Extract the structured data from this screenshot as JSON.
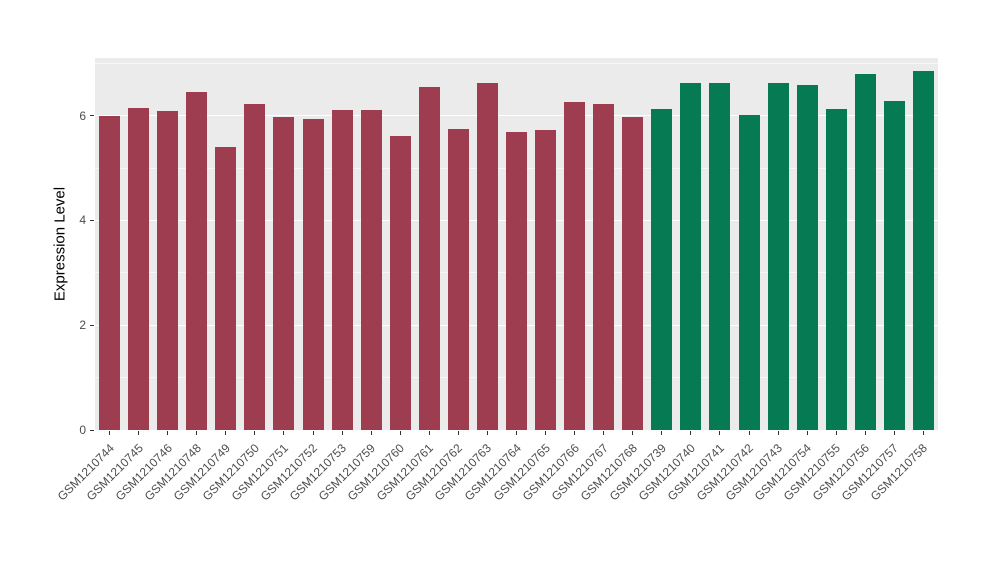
{
  "chart_data": {
    "type": "bar",
    "title": "",
    "xlabel": "",
    "ylabel": "Expression Level",
    "ylim": [
      0,
      7.1
    ],
    "yticks": [
      0,
      2,
      4,
      6
    ],
    "yticks_minor": [
      1,
      3,
      5,
      7
    ],
    "panel_bg": "#EBEBEB",
    "grid_color": "#FFFFFF",
    "legend": "none",
    "categories": [
      "GSM1210744",
      "GSM1210745",
      "GSM1210746",
      "GSM1210748",
      "GSM1210749",
      "GSM1210750",
      "GSM1210751",
      "GSM1210752",
      "GSM1210753",
      "GSM1210759",
      "GSM1210760",
      "GSM1210761",
      "GSM1210762",
      "GSM1210763",
      "GSM1210764",
      "GSM1210765",
      "GSM1210766",
      "GSM1210767",
      "GSM1210768",
      "GSM1210739",
      "GSM1210740",
      "GSM1210741",
      "GSM1210742",
      "GSM1210743",
      "GSM1210754",
      "GSM1210755",
      "GSM1210756",
      "GSM1210757",
      "GSM1210758"
    ],
    "values": [
      6.0,
      6.15,
      6.08,
      6.45,
      5.4,
      6.22,
      5.98,
      5.93,
      6.1,
      6.1,
      5.62,
      6.55,
      5.75,
      6.62,
      5.68,
      5.72,
      6.27,
      6.22,
      5.97,
      6.12,
      6.62,
      6.62,
      6.02,
      6.62,
      6.58,
      6.12,
      6.8,
      6.28,
      6.85
    ],
    "group": [
      0,
      0,
      0,
      0,
      0,
      0,
      0,
      0,
      0,
      0,
      0,
      0,
      0,
      0,
      0,
      0,
      0,
      0,
      0,
      1,
      1,
      1,
      1,
      1,
      1,
      1,
      1,
      1,
      1
    ],
    "group_colors": [
      "#9E3D4F",
      "#067A52"
    ]
  }
}
